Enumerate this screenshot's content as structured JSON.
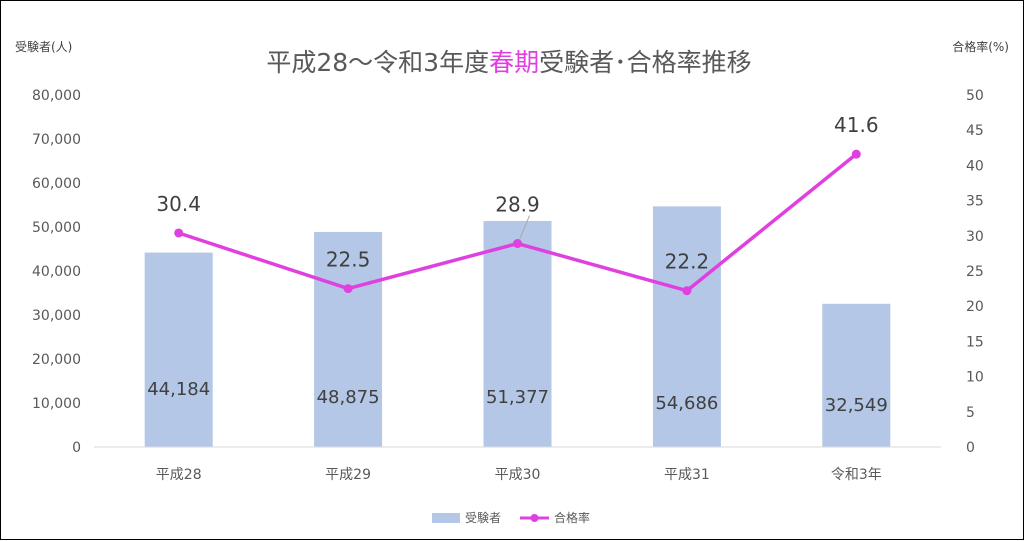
{
  "chart_data": {
    "type": "bar",
    "title_parts": [
      {
        "text": "平成28～令和3年度",
        "color": "#595959"
      },
      {
        "text": "春期",
        "color": "#e040e0"
      },
      {
        "text": "受験者･合格率推移",
        "color": "#595959"
      }
    ],
    "ylabel_left": "受験者(人)",
    "ylabel_right": "合格率(%)",
    "categories": [
      "平成28",
      "平成29",
      "平成30",
      "平成31",
      "令和3年"
    ],
    "series": [
      {
        "name": "受験者",
        "type": "bar",
        "axis": "left",
        "color": "#b4c7e7",
        "values": [
          44184,
          48875,
          51377,
          54686,
          32549
        ],
        "labels": [
          "44,184",
          "48,875",
          "51,377",
          "54,686",
          "32,549"
        ]
      },
      {
        "name": "合格率",
        "type": "line",
        "axis": "right",
        "color": "#e040e0",
        "values": [
          30.4,
          22.5,
          28.9,
          22.2,
          41.6
        ],
        "labels": [
          "30.4",
          "22.5",
          "28.9",
          "22.2",
          "41.6"
        ]
      }
    ],
    "yticks_left": [
      "0",
      "10,000",
      "20,000",
      "30,000",
      "40,000",
      "50,000",
      "60,000",
      "70,000",
      "80,000"
    ],
    "ylim_left": [
      0,
      80000
    ],
    "yticks_right": [
      "0",
      "5",
      "10",
      "15",
      "20",
      "25",
      "30",
      "35",
      "40",
      "45",
      "50"
    ],
    "ylim_right": [
      0,
      50
    ],
    "grid": false,
    "legend_position": "bottom"
  }
}
